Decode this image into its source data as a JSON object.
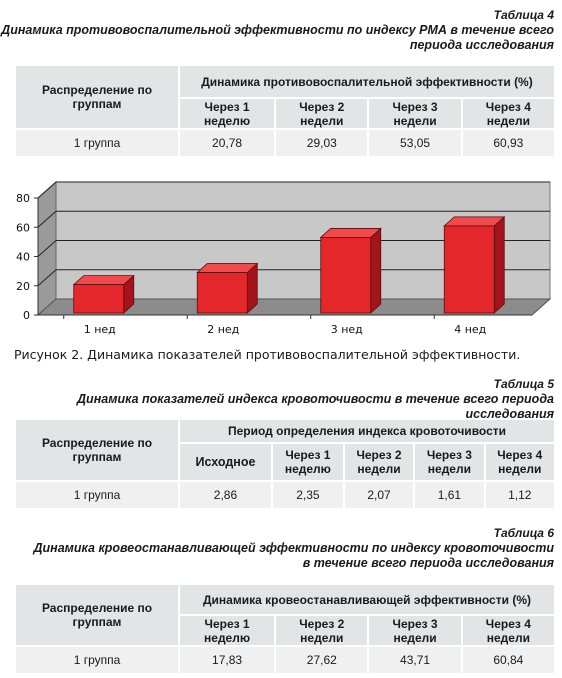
{
  "table4": {
    "number": "Таблица 4",
    "title_line1": "Динамика противовоспалительной эффективности по индексу РМА в течение всего",
    "title_line2": "периода исследования",
    "row_header": "Распределение по группам",
    "group_header": "Динамика  противовоспалительной  эффективности  (%)",
    "columns": [
      "Через 1 неделю",
      "Через 2 недели",
      "Через 3 недели",
      "Через 4 недели"
    ],
    "rows": [
      {
        "label": "1 группа",
        "values": [
          "20,78",
          "29,03",
          "53,05",
          "60,93"
        ]
      }
    ]
  },
  "chart_data": {
    "type": "bar",
    "categories": [
      "1 нед",
      "2 нед",
      "3 нед",
      "4 нед"
    ],
    "values": [
      20.78,
      29.03,
      53.05,
      60.93
    ],
    "ylim": [
      0,
      80
    ],
    "yticks": [
      "0",
      "20",
      "40",
      "60",
      "80"
    ],
    "grid": true,
    "bar_color": "#e3272b",
    "title": "",
    "xlabel": "",
    "ylabel": ""
  },
  "figure_caption": "Рисунок 2. Динамика показателей противовоспалительной эффективности.",
  "table5": {
    "number": "Таблица 5",
    "title_line1": "Динамика показателей индекса кровоточивости в течение всего периода исследования",
    "row_header": "Распределение по группам",
    "group_header": "Период  определения  индекса  кровоточивости",
    "columns": [
      {
        "line1": "Исходное",
        "line2": ""
      },
      {
        "line1": "Через 1",
        "line2": "неделю"
      },
      {
        "line1": "Через 2",
        "line2": "недели"
      },
      {
        "line1": "Через 3",
        "line2": "недели"
      },
      {
        "line1": "Через 4",
        "line2": "недели"
      }
    ],
    "rows": [
      {
        "label": "1 группа",
        "values": [
          "2,86",
          "2,35",
          "2,07",
          "1,61",
          "1,12"
        ]
      }
    ]
  },
  "table6": {
    "number": "Таблица 6",
    "title_line1": "Динамика кровеостанавливающей эффективности по индексу кровоточивости",
    "title_line2": "в течение всего периода исследования",
    "row_header": "Распределение по группам",
    "group_header": "Динамика кровеостанавливающей эффективности (%)",
    "columns": [
      "Через 1 неделю",
      "Через 2 недели",
      "Через 3 недели",
      "Через 4 недели"
    ],
    "rows": [
      {
        "label": "1 группа",
        "values": [
          "17,83",
          "27,62",
          "43,71",
          "60,84"
        ]
      }
    ]
  }
}
